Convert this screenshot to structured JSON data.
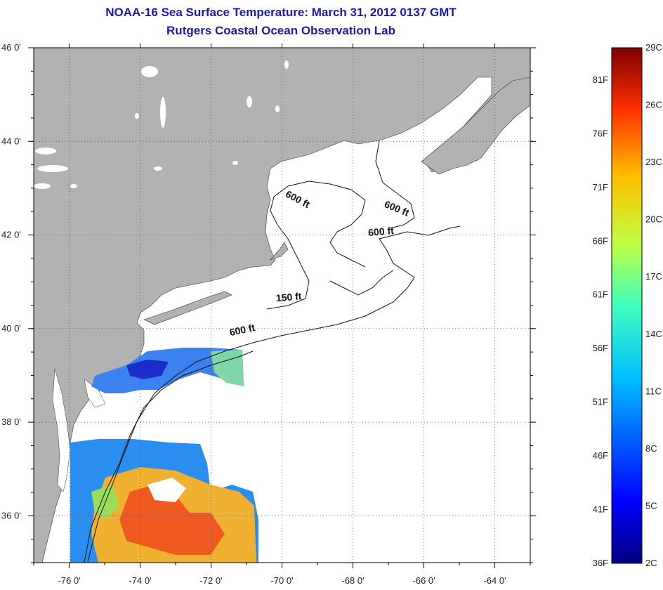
{
  "title": "NOAA-16 Sea Surface Temperature:  March 31, 2012 0137 GMT",
  "subtitle": "Rutgers Coastal Ocean Observation Lab",
  "map": {
    "lon_range": [
      -77,
      -63
    ],
    "lat_range": [
      35,
      46
    ],
    "lon_ticks": [
      {
        "value": -76,
        "label": "-76 0'"
      },
      {
        "value": -74,
        "label": "-74 0'"
      },
      {
        "value": -72,
        "label": "-72 0'"
      },
      {
        "value": -70,
        "label": "-70 0'"
      },
      {
        "value": -68,
        "label": "-68 0'"
      },
      {
        "value": -66,
        "label": "-66 0'"
      },
      {
        "value": -64,
        "label": "-64 0'"
      }
    ],
    "lat_ticks": [
      {
        "value": 46,
        "label": "46 0'"
      },
      {
        "value": 44,
        "label": "44 0'"
      },
      {
        "value": 42,
        "label": "42 0'"
      },
      {
        "value": 40,
        "label": "40 0'"
      },
      {
        "value": 38,
        "label": "38 0'"
      },
      {
        "value": 36,
        "label": "36 0'"
      }
    ],
    "grid": true,
    "land_color": "#b2b2b2",
    "ocean_color": "#ffffff",
    "contour_labels": [
      {
        "text": "600 ft",
        "lon": -69.6,
        "lat": 42.7,
        "angle": 28
      },
      {
        "text": "600 ft",
        "lon": -66.8,
        "lat": 42.5,
        "angle": 22
      },
      {
        "text": "600 ft",
        "lon": -67.2,
        "lat": 42.0,
        "angle": -5
      },
      {
        "text": "150 ft",
        "lon": -69.8,
        "lat": 40.6,
        "angle": -5
      },
      {
        "text": "600 ft",
        "lon": -71.1,
        "lat": 39.9,
        "angle": -12
      }
    ]
  },
  "colorbar": {
    "fahrenheit_labels": [
      "36F",
      "41F",
      "46F",
      "51F",
      "56F",
      "61F",
      "66F",
      "71F",
      "76F",
      "81F"
    ],
    "celsius_labels": [
      "2C",
      "5C",
      "8C",
      "11C",
      "14C",
      "17C",
      "20C",
      "23C",
      "26C",
      "29C"
    ],
    "range_f": [
      36,
      84
    ],
    "range_c": [
      2,
      29
    ]
  }
}
